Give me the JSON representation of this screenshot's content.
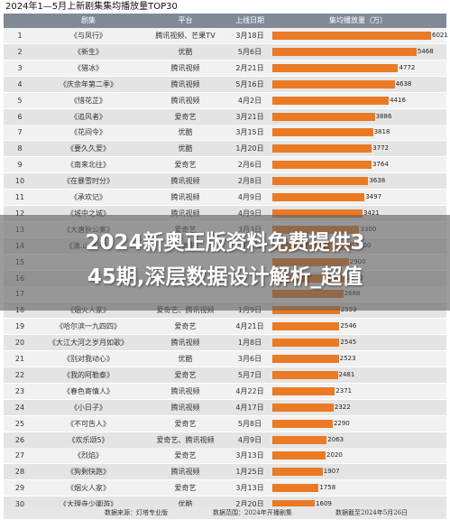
{
  "title": "2024年1—5月上新剧集集均播放量TOP30",
  "headers": {
    "rank": "",
    "name": "剧集",
    "platform": "平台",
    "date": "上线日期",
    "value": "集均播放量（万）"
  },
  "colors": {
    "bar": "#ea7a24",
    "header": "#7f8a96"
  },
  "chart_data": {
    "type": "bar",
    "title": "2024年1—5月上新剧集集均播放量TOP30",
    "xlabel": "",
    "ylabel": "集均播放量（万）",
    "ylim": [
      0,
      6021
    ],
    "rows": [
      {
        "rank": "1",
        "name": "《与凤行》",
        "platform": "腾讯视频、芒果TV",
        "date": "3月18日",
        "value": 6021
      },
      {
        "rank": "2",
        "name": "《新生》",
        "platform": "优酷",
        "date": "5月6日",
        "value": 5468
      },
      {
        "rank": "3",
        "name": "《猎冰》",
        "platform": "腾讯视频",
        "date": "2月21日",
        "value": 4772
      },
      {
        "rank": "4",
        "name": "《庆余年第二季》",
        "platform": "腾讯视频",
        "date": "5月16日",
        "value": 4638
      },
      {
        "rank": "5",
        "name": "《惜花芷》",
        "platform": "腾讯视频",
        "date": "4月2日",
        "value": 4416
      },
      {
        "rank": "6",
        "name": "《追风者》",
        "platform": "爱奇艺",
        "date": "3月21日",
        "value": 3886
      },
      {
        "rank": "7",
        "name": "《花间令》",
        "platform": "优酷",
        "date": "3月15日",
        "value": 3818
      },
      {
        "rank": "8",
        "name": "《要久久爱》",
        "platform": "优酷",
        "date": "1月20日",
        "value": 3772
      },
      {
        "rank": "9",
        "name": "《南来北往》",
        "platform": "爱奇艺",
        "date": "2月6日",
        "value": 3764
      },
      {
        "rank": "10",
        "name": "《在暴雪时分》",
        "platform": "腾讯视频",
        "date": "2月8日",
        "value": 3638
      },
      {
        "rank": "11",
        "name": "《承欢记》",
        "platform": "腾讯视频",
        "date": "4月9日",
        "value": 3497
      },
      {
        "rank": "12",
        "name": "《城中之城》",
        "platform": "腾讯视频",
        "date": "4月9日",
        "value": 3421
      },
      {
        "rank": "13",
        "name": "《大唐狄公案》",
        "platform": "爱奇艺",
        "date": "3月3日",
        "value": 3300
      },
      {
        "rank": "14",
        "name": "《清.山海风》",
        "platform": "爱奇艺",
        "date": "2月8日",
        "value": 3100
      },
      {
        "rank": "15",
        "name": "",
        "platform": "",
        "date": "",
        "value": 2900
      },
      {
        "rank": "16",
        "name": "",
        "platform": "",
        "date": "",
        "value": 2800
      },
      {
        "rank": "17",
        "name": "",
        "platform": "",
        "date": "",
        "value": 2688
      },
      {
        "rank": "18",
        "name": "《烟火人家》",
        "platform": "爱奇艺、腾讯视频",
        "date": "1月9日",
        "value": 2559
      },
      {
        "rank": "19",
        "name": "《哈尔滨一九四四》",
        "platform": "爱奇艺",
        "date": "4月21日",
        "value": 2546
      },
      {
        "rank": "20",
        "name": "《大江大河之岁月如歌》",
        "platform": "腾讯视频",
        "date": "1月8日",
        "value": 2545
      },
      {
        "rank": "21",
        "name": "《别对我动心》",
        "platform": "优酷",
        "date": "3月6日",
        "value": 2523
      },
      {
        "rank": "22",
        "name": "《我的阿勒泰》",
        "platform": "爱奇艺",
        "date": "5月7日",
        "value": 2481
      },
      {
        "rank": "23",
        "name": "《春色寄情人》",
        "platform": "腾讯视频",
        "date": "4月22日",
        "value": 2371
      },
      {
        "rank": "24",
        "name": "《小日子》",
        "platform": "腾讯视频",
        "date": "4月17日",
        "value": 2322
      },
      {
        "rank": "25",
        "name": "《不可告人》",
        "platform": "爱奇艺",
        "date": "5月8日",
        "value": 2290
      },
      {
        "rank": "26",
        "name": "《欢乐颂5》",
        "platform": "爱奇艺、腾讯视频",
        "date": "4月9日",
        "value": 2063
      },
      {
        "rank": "27",
        "name": "《烈焰》",
        "platform": "爱奇艺",
        "date": "3月13日",
        "value": 2020
      },
      {
        "rank": "28",
        "name": "《狗剩快跑》",
        "platform": "腾讯视频",
        "date": "1月25日",
        "value": 1907
      },
      {
        "rank": "29",
        "name": "《烟火人家》",
        "platform": "爱奇艺",
        "date": "3月13日",
        "value": 1758
      },
      {
        "rank": "30",
        "name": "《大理寺少卿游》",
        "platform": "优酷",
        "date": "2月20日",
        "value": 1609
      }
    ]
  },
  "footer": {
    "source": "数据来源：灯塔专业版",
    "scope": "数据范围：2024年开播剧集",
    "cutoff": "数据截至2024年5月26日"
  },
  "overlay": {
    "line1": "2024新奥正版资料免费提供3",
    "line2": "45期,深层数据设计解析_超值"
  }
}
